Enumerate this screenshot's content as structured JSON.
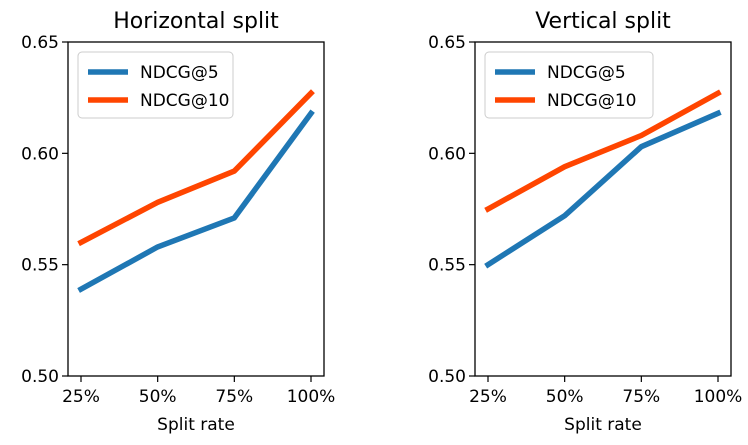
{
  "chart_data": [
    {
      "type": "line",
      "title": "Horizontal split",
      "xlabel": "Split rate",
      "ylabel": "",
      "categories": [
        "25%",
        "50%",
        "75%",
        "100%"
      ],
      "ylim": [
        0.5,
        0.65
      ],
      "yticks": [
        "0.50",
        "0.55",
        "0.60",
        "0.65"
      ],
      "grid": false,
      "legend": "top-left",
      "series": [
        {
          "name": "NDCG@5",
          "color": "#1f77b4",
          "values": [
            0.539,
            0.558,
            0.571,
            0.618
          ]
        },
        {
          "name": "NDCG@10",
          "color": "#ff4500",
          "values": [
            0.56,
            0.578,
            0.592,
            0.627
          ]
        }
      ]
    },
    {
      "type": "line",
      "title": "Vertical split",
      "xlabel": "Split rate",
      "ylabel": "",
      "categories": [
        "25%",
        "50%",
        "75%",
        "100%"
      ],
      "ylim": [
        0.5,
        0.65
      ],
      "yticks": [
        "0.50",
        "0.55",
        "0.60",
        "0.65"
      ],
      "grid": false,
      "legend": "top-left",
      "series": [
        {
          "name": "NDCG@5",
          "color": "#1f77b4",
          "values": [
            0.55,
            0.572,
            0.603,
            0.618
          ]
        },
        {
          "name": "NDCG@10",
          "color": "#ff4500",
          "values": [
            0.575,
            0.594,
            0.608,
            0.627
          ]
        }
      ]
    }
  ]
}
